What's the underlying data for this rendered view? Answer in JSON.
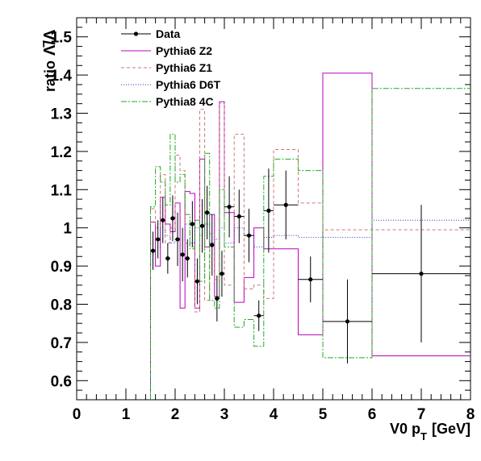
{
  "chart_data": {
    "type": "line",
    "xlabel": "V0 p",
    "xlabel_sub": "T",
    "xlabel_unit": "[GeV]",
    "ylabel": "ratio",
    "ylabel_symbol": "Λ̄/Λ",
    "xlim": [
      0,
      8
    ],
    "ylim": [
      0.55,
      1.55
    ],
    "x_ticks": [
      0,
      1,
      2,
      3,
      4,
      5,
      6,
      7,
      8
    ],
    "y_ticks": [
      0.6,
      0.7,
      0.8,
      0.9,
      1.0,
      1.1,
      1.2,
      1.3,
      1.4,
      1.5
    ],
    "x_tick_labels": [
      "0",
      "1",
      "2",
      "3",
      "4",
      "5",
      "6",
      "7",
      "8"
    ],
    "y_tick_labels": [
      "0.6",
      "0.7",
      "0.8",
      "0.9",
      "1",
      "1.1",
      "1.2",
      "1.3",
      "1.4",
      "1.5"
    ],
    "grid": false,
    "legend_position": "top-left",
    "bin_edges": [
      1.5,
      1.6,
      1.7,
      1.8,
      1.9,
      2.0,
      2.1,
      2.2,
      2.3,
      2.4,
      2.5,
      2.6,
      2.7,
      2.8,
      2.9,
      3.0,
      3.2,
      3.4,
      3.6,
      3.8,
      4.0,
      4.5,
      5.0,
      6.0,
      8.0
    ],
    "series": [
      {
        "name": "Data",
        "kind": "points",
        "color": "#000000",
        "x": [
          1.55,
          1.65,
          1.75,
          1.85,
          1.95,
          2.05,
          2.15,
          2.25,
          2.35,
          2.45,
          2.55,
          2.65,
          2.75,
          2.85,
          2.95,
          3.1,
          3.3,
          3.5,
          3.7,
          3.9,
          4.25,
          4.75,
          5.5,
          7.0
        ],
        "y": [
          0.94,
          0.97,
          1.02,
          0.92,
          1.025,
          0.97,
          0.93,
          0.92,
          1.01,
          0.86,
          1.005,
          1.04,
          0.955,
          0.815,
          0.88,
          1.055,
          1.03,
          0.98,
          0.77,
          1.045,
          1.06,
          0.865,
          0.755,
          0.88
        ],
        "yerr": [
          0.05,
          0.05,
          0.06,
          0.04,
          0.06,
          0.07,
          0.07,
          0.05,
          0.06,
          0.06,
          0.07,
          0.07,
          0.08,
          0.06,
          0.06,
          0.08,
          0.07,
          0.07,
          0.04,
          0.11,
          0.09,
          0.06,
          0.11,
          0.18
        ]
      },
      {
        "name": "Pythia6 Z2",
        "kind": "step",
        "color": "#bb00bb",
        "dash": "",
        "values": [
          1.015,
          0.9,
          1.08,
          1.01,
          0.99,
          1.065,
          0.79,
          1.095,
          1.09,
          0.79,
          1.18,
          0.95,
          1.035,
          0.82,
          1.33,
          1.04,
          0.805,
          0.87,
          1.0,
          0.945,
          0.945,
          0.72,
          1.405,
          0.665
        ]
      },
      {
        "name": "Pythia6 Z1",
        "kind": "step",
        "color": "#cc7777",
        "dash": "4,3",
        "values": [
          1.05,
          1.0,
          1.14,
          0.96,
          1.0,
          1.19,
          1.15,
          0.96,
          0.95,
          0.78,
          1.31,
          0.81,
          0.985,
          0.865,
          1.325,
          0.85,
          1.245,
          0.84,
          0.85,
          0.815,
          1.205,
          1.065,
          0.995,
          0.995
        ]
      },
      {
        "name": "Pythia6 D6T",
        "kind": "step",
        "color": "#3333cc",
        "dash": "1,2",
        "values": [
          0.93,
          0.95,
          1.0,
          0.98,
          0.96,
          0.97,
          0.97,
          1.01,
          0.96,
          1.0,
          0.98,
          1.01,
          0.96,
          0.97,
          1.0,
          0.96,
          1.0,
          0.98,
          0.95,
          0.975,
          0.98,
          0.975,
          0.975,
          1.02
        ]
      },
      {
        "name": "Pythia8 4C",
        "kind": "step",
        "color": "#22aa22",
        "dash": "7,2,2,2",
        "values": [
          1.055,
          1.16,
          1.12,
          1.06,
          1.245,
          1.12,
          1.14,
          1.035,
          0.945,
          1.02,
          0.86,
          1.195,
          0.81,
          0.79,
          1.1,
          0.95,
          0.74,
          0.76,
          0.69,
          1.135,
          1.18,
          1.15,
          0.66,
          1.365
        ]
      }
    ]
  }
}
